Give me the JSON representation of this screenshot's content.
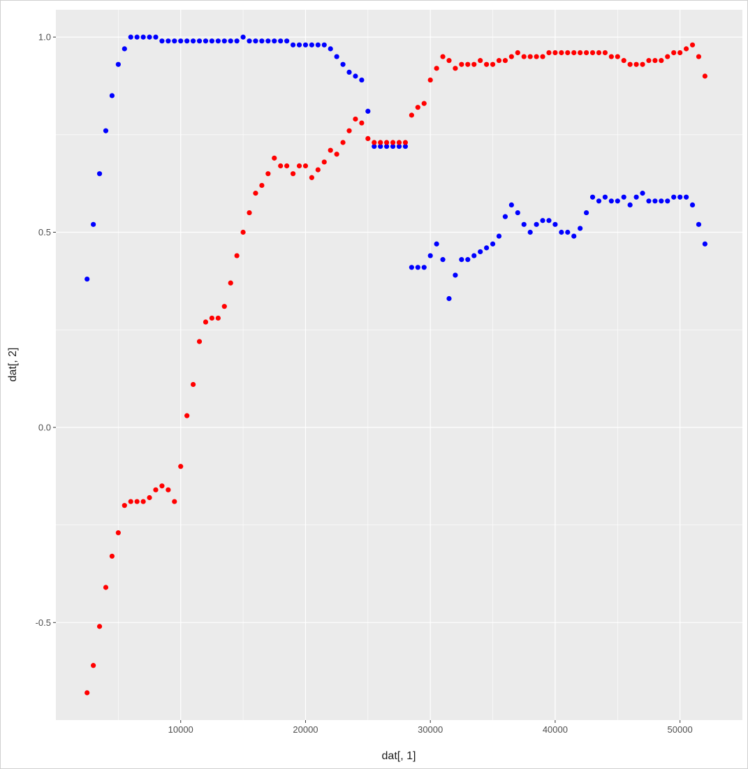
{
  "chart_data": {
    "type": "scatter",
    "xlabel": "dat[, 1]",
    "ylabel": "dat[, 2]",
    "xlim": [
      0,
      55000
    ],
    "ylim": [
      -0.75,
      1.07
    ],
    "x_ticks": [
      10000,
      20000,
      30000,
      40000,
      50000
    ],
    "x_tick_labels": [
      "10000",
      "20000",
      "30000",
      "40000",
      "50000"
    ],
    "y_ticks": [
      -0.5,
      0.0,
      0.5,
      1.0
    ],
    "y_tick_labels": [
      "-0.5",
      "0.0",
      "0.5",
      "1.0"
    ],
    "grid": true,
    "background": "#ebebeb",
    "gridline_color": "#ffffff",
    "series": [
      {
        "color": "#0000ff",
        "points": [
          [
            2500,
            0.38
          ],
          [
            3000,
            0.52
          ],
          [
            3500,
            0.65
          ],
          [
            4000,
            0.76
          ],
          [
            4500,
            0.85
          ],
          [
            5000,
            0.93
          ],
          [
            5500,
            0.97
          ],
          [
            6000,
            1.0
          ],
          [
            6500,
            1.0
          ],
          [
            7000,
            1.0
          ],
          [
            7500,
            1.0
          ],
          [
            8000,
            1.0
          ],
          [
            8500,
            0.99
          ],
          [
            9000,
            0.99
          ],
          [
            9500,
            0.99
          ],
          [
            10000,
            0.99
          ],
          [
            10500,
            0.99
          ],
          [
            11000,
            0.99
          ],
          [
            11500,
            0.99
          ],
          [
            12000,
            0.99
          ],
          [
            12500,
            0.99
          ],
          [
            13000,
            0.99
          ],
          [
            13500,
            0.99
          ],
          [
            14000,
            0.99
          ],
          [
            14500,
            0.99
          ],
          [
            15000,
            1.0
          ],
          [
            15500,
            0.99
          ],
          [
            16000,
            0.99
          ],
          [
            16500,
            0.99
          ],
          [
            17000,
            0.99
          ],
          [
            17500,
            0.99
          ],
          [
            18000,
            0.99
          ],
          [
            18500,
            0.99
          ],
          [
            19000,
            0.98
          ],
          [
            19500,
            0.98
          ],
          [
            20000,
            0.98
          ],
          [
            20500,
            0.98
          ],
          [
            21000,
            0.98
          ],
          [
            21500,
            0.98
          ],
          [
            22000,
            0.97
          ],
          [
            22500,
            0.95
          ],
          [
            23000,
            0.93
          ],
          [
            23500,
            0.91
          ],
          [
            24000,
            0.9
          ],
          [
            24500,
            0.89
          ],
          [
            25000,
            0.81
          ],
          [
            25500,
            0.72
          ],
          [
            26000,
            0.72
          ],
          [
            26500,
            0.72
          ],
          [
            27000,
            0.72
          ],
          [
            27500,
            0.72
          ],
          [
            28000,
            0.72
          ],
          [
            28500,
            0.41
          ],
          [
            29000,
            0.41
          ],
          [
            29500,
            0.41
          ],
          [
            30000,
            0.44
          ],
          [
            30500,
            0.47
          ],
          [
            31000,
            0.43
          ],
          [
            31500,
            0.33
          ],
          [
            32000,
            0.39
          ],
          [
            32500,
            0.43
          ],
          [
            33000,
            0.43
          ],
          [
            33500,
            0.44
          ],
          [
            34000,
            0.45
          ],
          [
            34500,
            0.46
          ],
          [
            35000,
            0.47
          ],
          [
            35500,
            0.49
          ],
          [
            36000,
            0.54
          ],
          [
            36500,
            0.57
          ],
          [
            37000,
            0.55
          ],
          [
            37500,
            0.52
          ],
          [
            38000,
            0.5
          ],
          [
            38500,
            0.52
          ],
          [
            39000,
            0.53
          ],
          [
            39500,
            0.53
          ],
          [
            40000,
            0.52
          ],
          [
            40500,
            0.5
          ],
          [
            41000,
            0.5
          ],
          [
            41500,
            0.49
          ],
          [
            42000,
            0.51
          ],
          [
            42500,
            0.55
          ],
          [
            43000,
            0.59
          ],
          [
            43500,
            0.58
          ],
          [
            44000,
            0.59
          ],
          [
            44500,
            0.58
          ],
          [
            45000,
            0.58
          ],
          [
            45500,
            0.59
          ],
          [
            46000,
            0.57
          ],
          [
            46500,
            0.59
          ],
          [
            47000,
            0.6
          ],
          [
            47500,
            0.58
          ],
          [
            48000,
            0.58
          ],
          [
            48500,
            0.58
          ],
          [
            49000,
            0.58
          ],
          [
            49500,
            0.59
          ],
          [
            50000,
            0.59
          ],
          [
            50500,
            0.59
          ],
          [
            51000,
            0.57
          ],
          [
            51500,
            0.52
          ],
          [
            52000,
            0.47
          ]
        ]
      },
      {
        "color": "#ff0000",
        "points": [
          [
            2500,
            -0.68
          ],
          [
            3000,
            -0.61
          ],
          [
            3500,
            -0.51
          ],
          [
            4000,
            -0.41
          ],
          [
            4500,
            -0.33
          ],
          [
            5000,
            -0.27
          ],
          [
            5500,
            -0.2
          ],
          [
            6000,
            -0.19
          ],
          [
            6500,
            -0.19
          ],
          [
            7000,
            -0.19
          ],
          [
            7500,
            -0.18
          ],
          [
            8000,
            -0.16
          ],
          [
            8500,
            -0.15
          ],
          [
            9000,
            -0.16
          ],
          [
            9500,
            -0.19
          ],
          [
            10000,
            -0.1
          ],
          [
            10500,
            0.03
          ],
          [
            11000,
            0.11
          ],
          [
            11500,
            0.22
          ],
          [
            12000,
            0.27
          ],
          [
            12500,
            0.28
          ],
          [
            13000,
            0.28
          ],
          [
            13500,
            0.31
          ],
          [
            14000,
            0.37
          ],
          [
            14500,
            0.44
          ],
          [
            15000,
            0.5
          ],
          [
            15500,
            0.55
          ],
          [
            16000,
            0.6
          ],
          [
            16500,
            0.62
          ],
          [
            17000,
            0.65
          ],
          [
            17500,
            0.69
          ],
          [
            18000,
            0.67
          ],
          [
            18500,
            0.67
          ],
          [
            19000,
            0.65
          ],
          [
            19500,
            0.67
          ],
          [
            20000,
            0.67
          ],
          [
            20500,
            0.64
          ],
          [
            21000,
            0.66
          ],
          [
            21500,
            0.68
          ],
          [
            22000,
            0.71
          ],
          [
            22500,
            0.7
          ],
          [
            23000,
            0.73
          ],
          [
            23500,
            0.76
          ],
          [
            24000,
            0.79
          ],
          [
            24500,
            0.78
          ],
          [
            25000,
            0.74
          ],
          [
            25500,
            0.73
          ],
          [
            26000,
            0.73
          ],
          [
            26500,
            0.73
          ],
          [
            27000,
            0.73
          ],
          [
            27500,
            0.73
          ],
          [
            28000,
            0.73
          ],
          [
            28500,
            0.8
          ],
          [
            29000,
            0.82
          ],
          [
            29500,
            0.83
          ],
          [
            30000,
            0.89
          ],
          [
            30500,
            0.92
          ],
          [
            31000,
            0.95
          ],
          [
            31500,
            0.94
          ],
          [
            32000,
            0.92
          ],
          [
            32500,
            0.93
          ],
          [
            33000,
            0.93
          ],
          [
            33500,
            0.93
          ],
          [
            34000,
            0.94
          ],
          [
            34500,
            0.93
          ],
          [
            35000,
            0.93
          ],
          [
            35500,
            0.94
          ],
          [
            36000,
            0.94
          ],
          [
            36500,
            0.95
          ],
          [
            37000,
            0.96
          ],
          [
            37500,
            0.95
          ],
          [
            38000,
            0.95
          ],
          [
            38500,
            0.95
          ],
          [
            39000,
            0.95
          ],
          [
            39500,
            0.96
          ],
          [
            40000,
            0.96
          ],
          [
            40500,
            0.96
          ],
          [
            41000,
            0.96
          ],
          [
            41500,
            0.96
          ],
          [
            42000,
            0.96
          ],
          [
            42500,
            0.96
          ],
          [
            43000,
            0.96
          ],
          [
            43500,
            0.96
          ],
          [
            44000,
            0.96
          ],
          [
            44500,
            0.95
          ],
          [
            45000,
            0.95
          ],
          [
            45500,
            0.94
          ],
          [
            46000,
            0.93
          ],
          [
            46500,
            0.93
          ],
          [
            47000,
            0.93
          ],
          [
            47500,
            0.94
          ],
          [
            48000,
            0.94
          ],
          [
            48500,
            0.94
          ],
          [
            49000,
            0.95
          ],
          [
            49500,
            0.96
          ],
          [
            50000,
            0.96
          ],
          [
            50500,
            0.97
          ],
          [
            51000,
            0.98
          ],
          [
            51500,
            0.95
          ],
          [
            52000,
            0.9
          ]
        ]
      }
    ]
  }
}
